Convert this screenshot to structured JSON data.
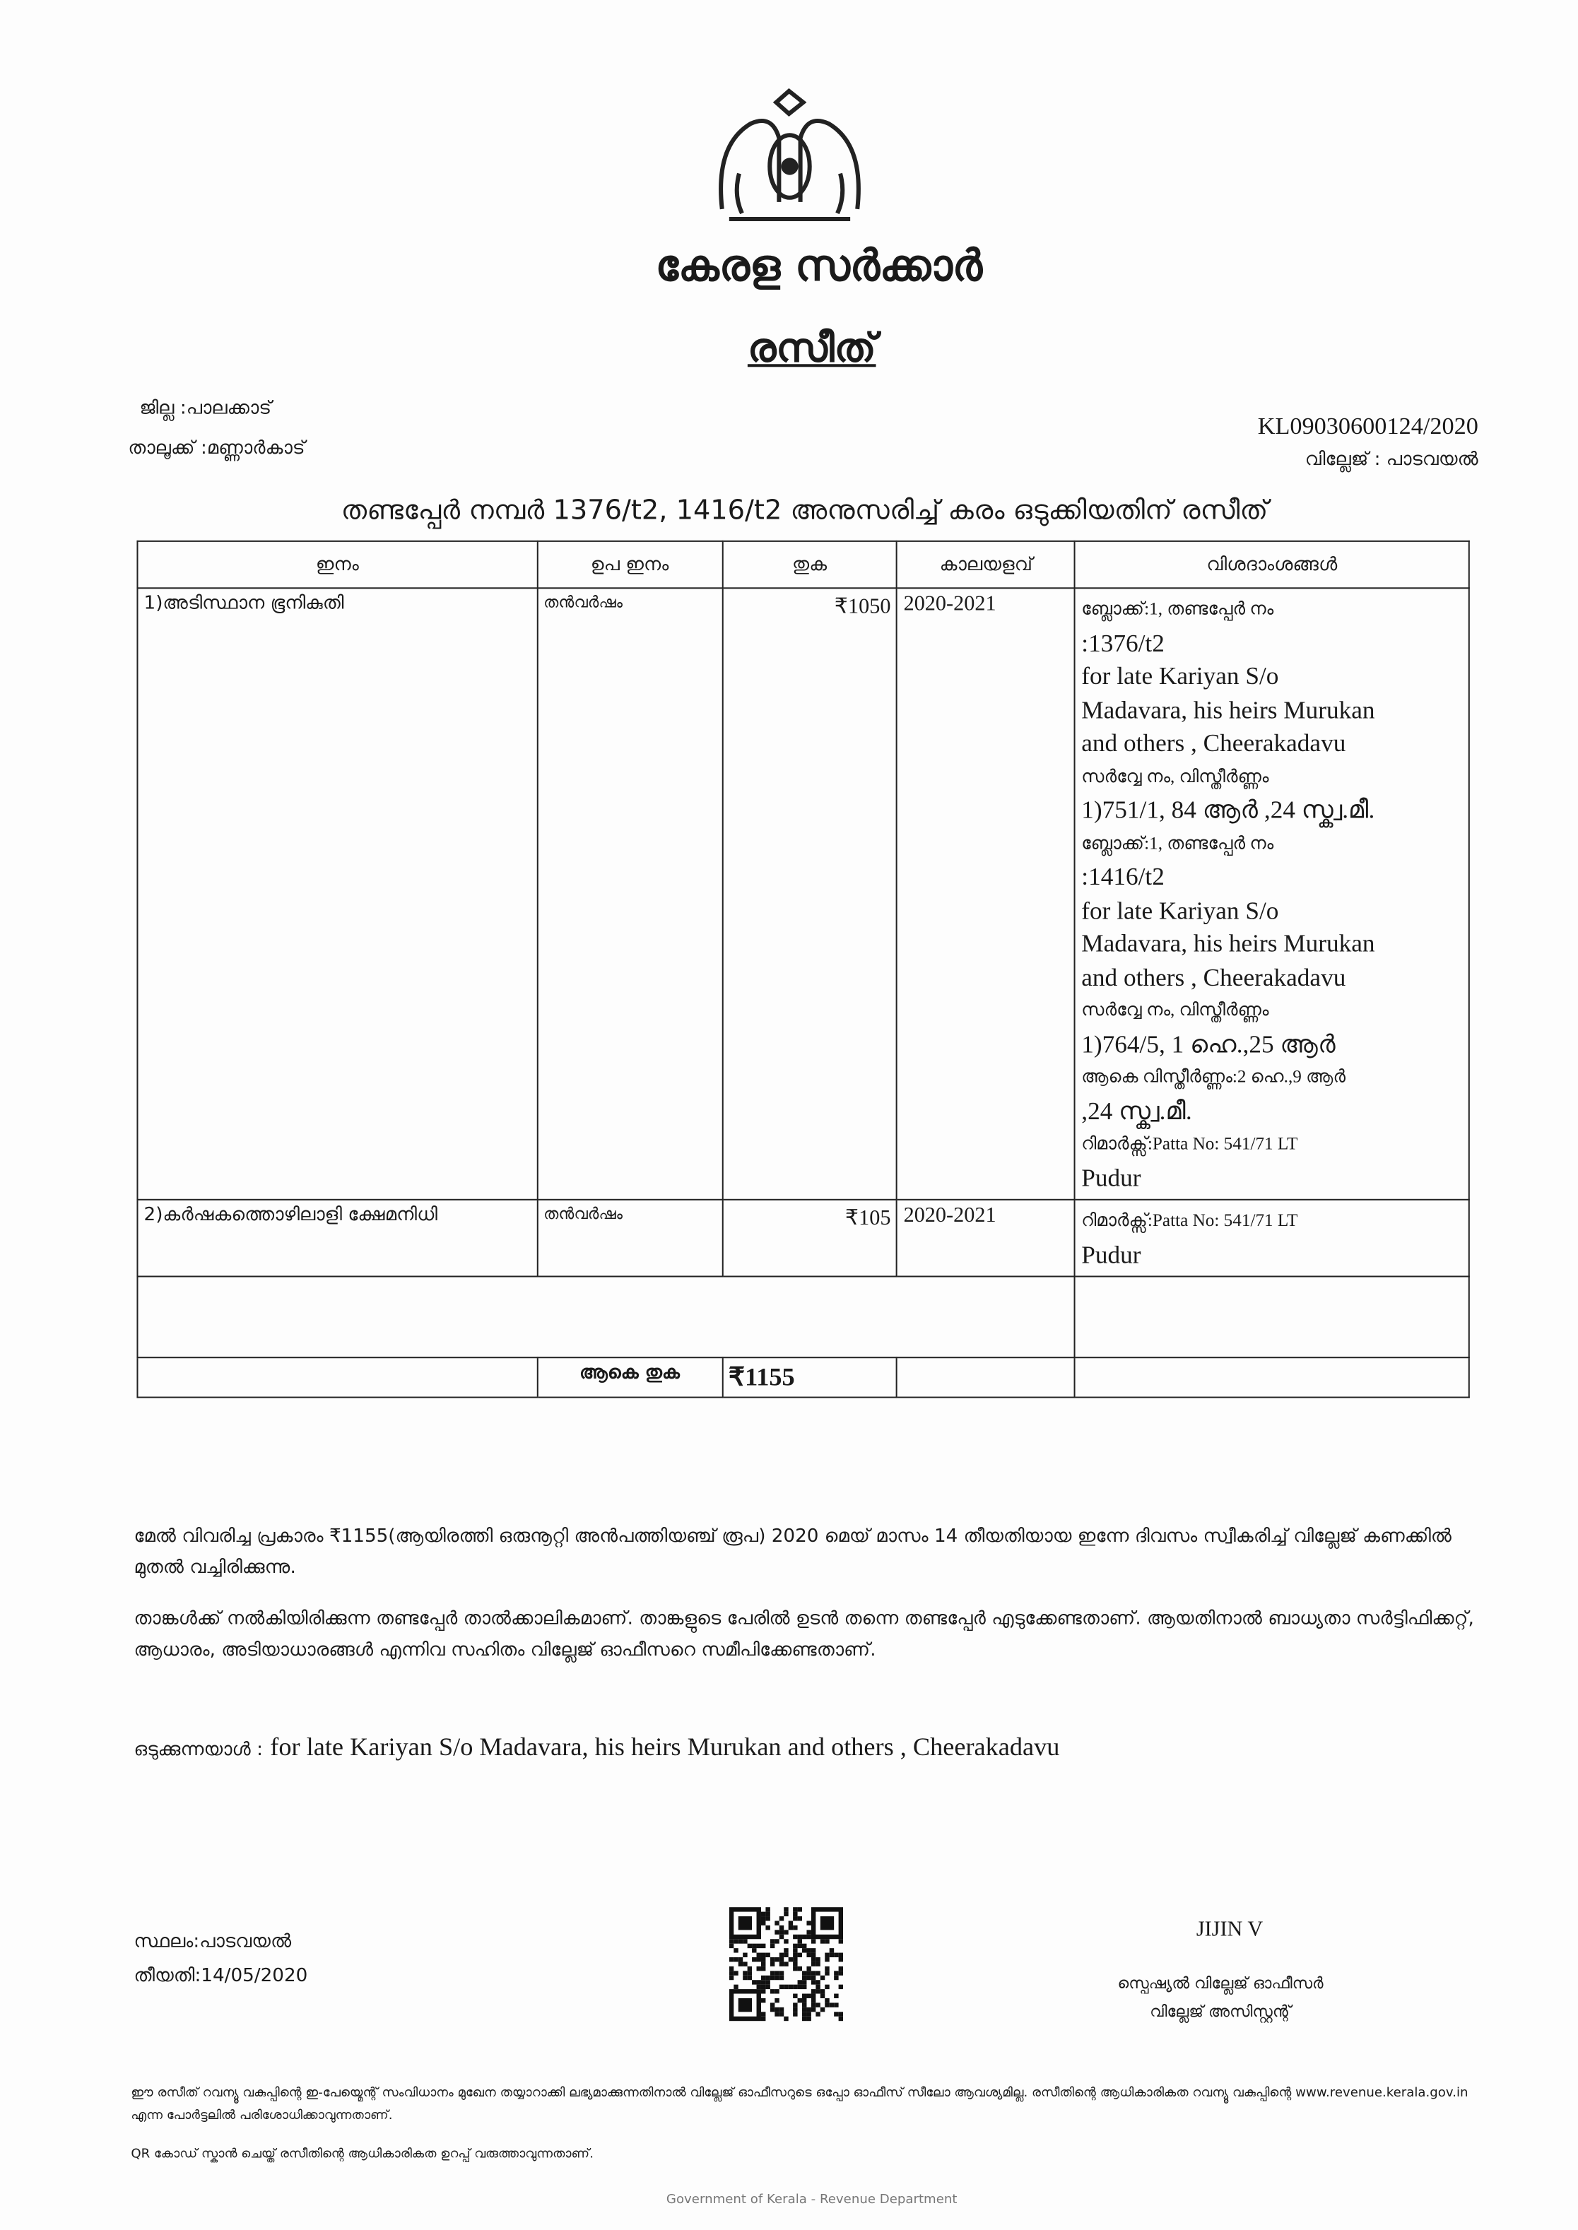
{
  "header": {
    "government": "കേരള സർക്കാർ",
    "doc_title": "രസീത്",
    "district_label": "ജില്ല :പാലക്കാട്",
    "taluk_label": "താലൂക്ക് :മണ്ണാർകാട്",
    "receipt_no": "KL09030600124/2020",
    "village_label": "വില്ലേജ് : പാടവയൽ",
    "heading": "തണ്ടപ്പേർ നമ്പർ 1376/t2, 1416/t2 അനുസരിച്ച് കരം ഒടുക്കിയതിന് രസീത്"
  },
  "table": {
    "columns": [
      "ഇനം",
      "ഉപ ഇനം",
      "തുക",
      "കാലയളവ്",
      "വിശദാംശങ്ങൾ"
    ],
    "rows": [
      {
        "item": "1)അടിസ്ഥാന ഭൂനികുതി",
        "sub_item": "തൻവർഷം",
        "amount": "₹1050",
        "period": "2020-2021",
        "details": [
          "ബ്ലോക്ക്:1, തണ്ടപ്പേർ നം",
          ":1376/t2",
          "for late Kariyan S/o",
          "Madavara, his heirs Murukan",
          "and others , Cheerakadavu",
          "സർവ്വേ നം, വിസ്തീർണ്ണം",
          "1)751/1, 84 ആർ ,24 സ്ക്വ.മീ.",
          "ബ്ലോക്ക്:1, തണ്ടപ്പേർ നം",
          ":1416/t2",
          "for late Kariyan S/o",
          "Madavara, his heirs Murukan",
          "and others , Cheerakadavu",
          "സർവ്വേ നം, വിസ്തീർണ്ണം",
          "1)764/5, 1 ഹെ.,25 ആർ",
          "ആകെ വിസ്തീർണ്ണം:2 ഹെ.,9 ആർ",
          ",24 സ്ക്വ.മീ.",
          "റിമാർക്സ്:Patta No: 541/71 LT",
          "Pudur"
        ]
      },
      {
        "item": "2)കർഷകത്തൊഴിലാളി ക്ഷേമനിധി",
        "sub_item": "തൻവർഷം",
        "amount": "₹105",
        "period": "2020-2021",
        "details": [
          "റിമാർക്സ്:Patta No: 541/71 LT",
          "Pudur"
        ]
      }
    ],
    "total_label": "ആകെ തുക",
    "total_amount": "₹1155"
  },
  "body": {
    "para1": "മേൽ വിവരിച്ച പ്രകാരം ₹1155(ആയിരത്തി ഒരുനൂറ്റി അൻപത്തിയഞ്ച് രൂപ) 2020 മെയ് മാസം 14 തീയതിയായ ഇന്നേ ദിവസം സ്വീകരിച്ച് വില്ലേജ് കണക്കിൽ മുതൽ വച്ചിരിക്കുന്നു.",
    "para2": "താങ്കൾക്ക് നൽകിയിരിക്കുന്ന തണ്ടപ്പേർ താൽക്കാലികമാണ്. താങ്കളുടെ പേരിൽ ഉടൻ തന്നെ തണ്ടപ്പേർ എടുക്കേണ്ടതാണ്. ആയതിനാൽ ബാധ്യതാ സർട്ടിഫിക്കറ്റ്, ആധാരം, അടിയാധാരങ്ങൾ എന്നിവ സഹിതം വില്ലേജ് ഓഫീസറെ സമീപിക്കേണ്ടതാണ്.",
    "payer_label": "ഒടുക്കുന്നയാൾ :",
    "payer": "for late Kariyan S/o Madavara, his heirs Murukan and others , Cheerakadavu"
  },
  "signoff": {
    "place": "സ്ഥലം:പാടവയൽ",
    "date": "തീയതി:14/05/2020",
    "officer_name": "JIJIN V",
    "designation1": "സ്പെഷ്യൽ വില്ലേജ് ഓഫീസർ",
    "designation2": "വില്ലേജ് അസിസ്റ്റന്റ്"
  },
  "footer": {
    "note1": "ഈ രസീത് റവന്യൂ വകുപ്പിന്റെ ഇ-പേയ്മെന്റ് സംവിധാനം മുഖേന തയ്യാറാക്കി ലഭ്യമാക്കുന്നതിനാൽ വില്ലേജ് ഓഫീസറുടെ ഒപ്പോ ഓഫീസ് സീലോ ആവശ്യമില്ല. രസീതിന്റെ ആധികാരികത റവന്യൂ വകുപ്പിന്റെ www.revenue.kerala.gov.in എന്ന പോർട്ടലിൽ പരിശോധിക്കാവുന്നതാണ്.",
    "note2": "QR കോഡ് സ്കാൻ ചെയ്ത് രസീതിന്റെ ആധികാരികത ഉറപ്പ് വരുത്താവുന്നതാണ്.",
    "org": "Government of Kerala - Revenue Department"
  }
}
